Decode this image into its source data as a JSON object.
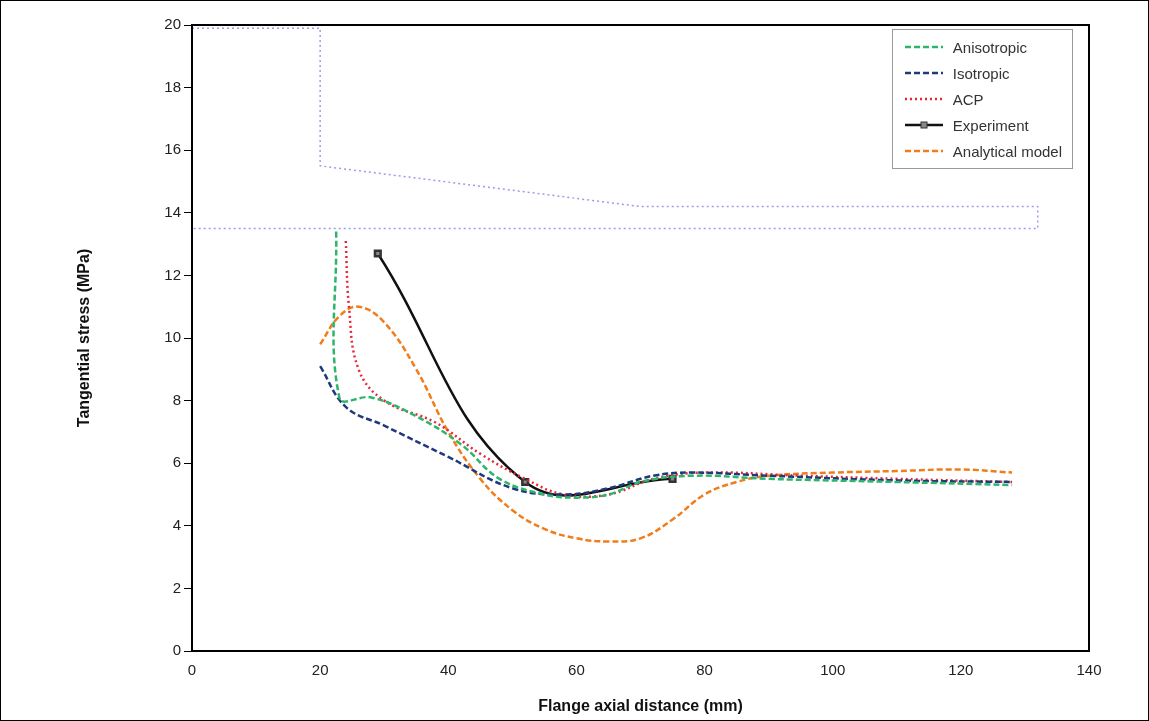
{
  "chart_data": {
    "type": "line",
    "xlabel": "Flange axial distance (mm)",
    "ylabel": "Tangential stress (MPa)",
    "xlim": [
      0,
      140
    ],
    "xticks": [
      0,
      20,
      40,
      60,
      80,
      100,
      120,
      140
    ],
    "ylim": [
      0,
      20
    ],
    "yticks": [
      0,
      2,
      4,
      6,
      8,
      10,
      12,
      14,
      16,
      18,
      20
    ],
    "grid": false,
    "legend": "top right",
    "series": [
      {
        "name": "Anisotropic",
        "color": "#2db56b",
        "line_style": "dashed",
        "marker": "none",
        "x": [
          22.5,
          23,
          28,
          35,
          42,
          48,
          55,
          60,
          65,
          70,
          78,
          90,
          110,
          128
        ],
        "values": [
          13.4,
          8.1,
          8.1,
          7.5,
          6.6,
          5.5,
          5.0,
          4.9,
          5.0,
          5.4,
          5.6,
          5.5,
          5.4,
          5.3
        ]
      },
      {
        "name": "Isotropic",
        "color": "#1f3a7a",
        "line_style": "dashed",
        "marker": "none",
        "x": [
          20,
          24,
          30,
          40,
          50,
          58,
          65,
          72,
          78,
          90,
          110,
          128
        ],
        "values": [
          9.1,
          7.8,
          7.2,
          6.2,
          5.2,
          5.0,
          5.2,
          5.6,
          5.7,
          5.6,
          5.45,
          5.4
        ]
      },
      {
        "name": "ACP",
        "color": "#e8283a",
        "line_style": "dotted",
        "marker": "none",
        "x": [
          24,
          24.5,
          26,
          30,
          38,
          45,
          52,
          58,
          65,
          72,
          80,
          95,
          110,
          128
        ],
        "values": [
          13.1,
          11,
          9,
          8,
          7.3,
          6.3,
          5.5,
          5.0,
          5.0,
          5.5,
          5.7,
          5.6,
          5.5,
          5.4
        ]
      },
      {
        "name": "Experiment",
        "color": "#111111",
        "line_style": "solid",
        "marker": "square",
        "x": [
          29,
          52,
          75
        ],
        "values": [
          12.7,
          5.4,
          5.5
        ]
      },
      {
        "color": "#9a9ee8",
        "line_style": "dotted",
        "marker": "none",
        "x": [
          0,
          20,
          20,
          70,
          132,
          132,
          0
        ],
        "values": [
          19.9,
          19.9,
          15.5,
          14.2,
          14.2,
          13.5,
          13.5
        ]
      },
      {
        "name": "Analytical model",
        "color": "#f07d1a",
        "line_style": "dashed",
        "marker": "none",
        "x": [
          20,
          23,
          26,
          30,
          35,
          40,
          45,
          50,
          55,
          60,
          65,
          70,
          75,
          80,
          85,
          90,
          100,
          110,
          120,
          128
        ],
        "values": [
          9.8,
          10.7,
          11.0,
          10.5,
          9.0,
          7.0,
          5.5,
          4.5,
          3.9,
          3.6,
          3.5,
          3.6,
          4.2,
          5.0,
          5.4,
          5.6,
          5.7,
          5.75,
          5.8,
          5.7
        ]
      }
    ]
  }
}
